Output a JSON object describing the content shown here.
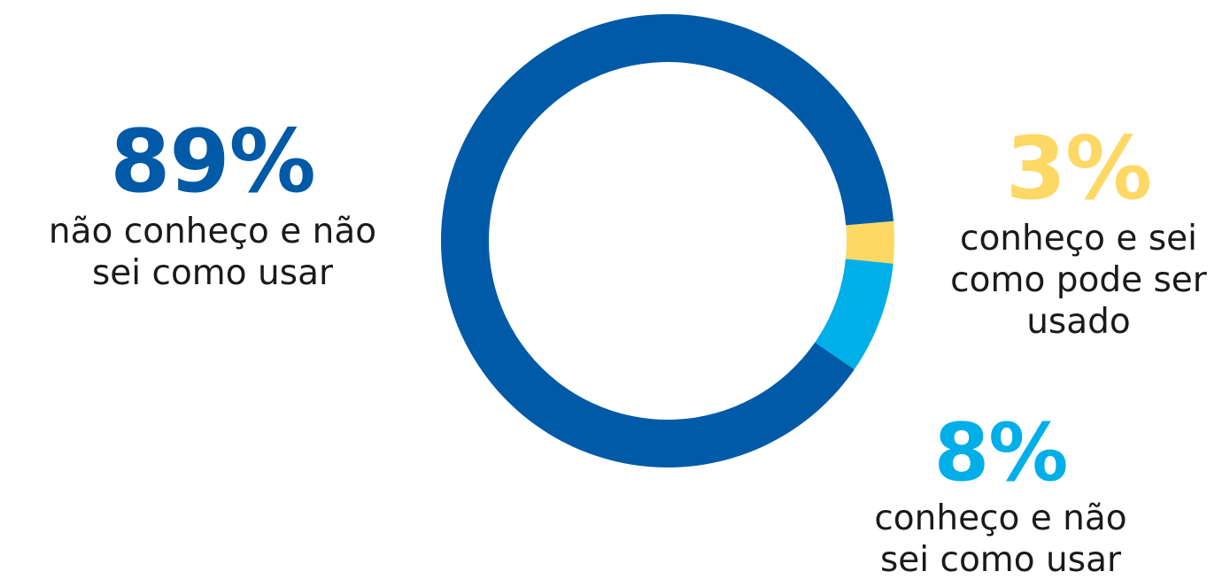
{
  "chart_data": {
    "type": "pie",
    "variant": "donut",
    "categories": [
      "não conheço e não sei como usar",
      "conheço e sei como pode ser usado",
      "conheço e não sei como usar"
    ],
    "values": [
      89,
      3,
      8
    ],
    "unit": "%",
    "colors": [
      "#005aa7",
      "#fdd865",
      "#00aee8"
    ]
  },
  "callouts": {
    "dont_know": {
      "value": "89%",
      "line1": "não conheço e não",
      "line2": "sei como usar",
      "color": "#005aa7"
    },
    "know_use": {
      "value": "3%",
      "line1": "conheço e sei",
      "line2": "como pode ser",
      "line3": "usado",
      "color": "#fdd865"
    },
    "know_dont_use": {
      "value": "8%",
      "line1": "conheço e não",
      "line2": "sei como usar",
      "color": "#00aee8"
    }
  }
}
